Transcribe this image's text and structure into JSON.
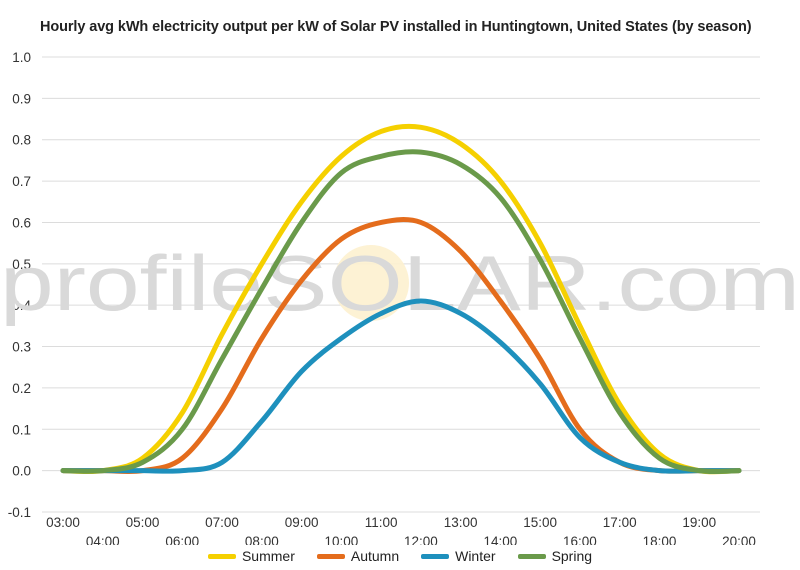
{
  "chart_data": {
    "type": "line",
    "title": "Hourly avg kWh electricity output per kW of Solar PV installed in Huntingtown, United States (by season)",
    "xlabel": "",
    "ylabel": "",
    "ylim": [
      -0.1,
      1.0
    ],
    "yticks": [
      "1.0",
      "0.9",
      "0.8",
      "0.7",
      "0.6",
      "0.5",
      "0.4",
      "0.3",
      "0.2",
      "0.1",
      "0.0",
      "-0.1"
    ],
    "x": [
      "03:00",
      "04:00",
      "05:00",
      "06:00",
      "07:00",
      "08:00",
      "09:00",
      "10:00",
      "11:00",
      "12:00",
      "13:00",
      "14:00",
      "15:00",
      "16:00",
      "17:00",
      "18:00",
      "19:00",
      "20:00"
    ],
    "grid": true,
    "legend_position": "bottom",
    "watermark": "profileSOLAR.com",
    "series": [
      {
        "name": "Summer",
        "color": "#f5d000",
        "values": [
          0,
          0,
          0.03,
          0.14,
          0.33,
          0.5,
          0.65,
          0.76,
          0.82,
          0.83,
          0.79,
          0.7,
          0.55,
          0.35,
          0.16,
          0.04,
          0,
          0
        ]
      },
      {
        "name": "Autumn",
        "color": "#e46c1c",
        "values": [
          0,
          0,
          0,
          0.03,
          0.15,
          0.32,
          0.46,
          0.56,
          0.6,
          0.6,
          0.53,
          0.41,
          0.27,
          0.1,
          0.02,
          0,
          0,
          0
        ]
      },
      {
        "name": "Winter",
        "color": "#1e90bd",
        "values": [
          0,
          0,
          0,
          0,
          0.02,
          0.12,
          0.24,
          0.32,
          0.38,
          0.41,
          0.38,
          0.31,
          0.21,
          0.08,
          0.02,
          0,
          0,
          0
        ]
      },
      {
        "name": "Spring",
        "color": "#6a9a4a",
        "values": [
          0,
          0,
          0.02,
          0.1,
          0.27,
          0.44,
          0.6,
          0.72,
          0.76,
          0.77,
          0.74,
          0.66,
          0.51,
          0.32,
          0.14,
          0.03,
          0,
          0
        ]
      }
    ]
  }
}
